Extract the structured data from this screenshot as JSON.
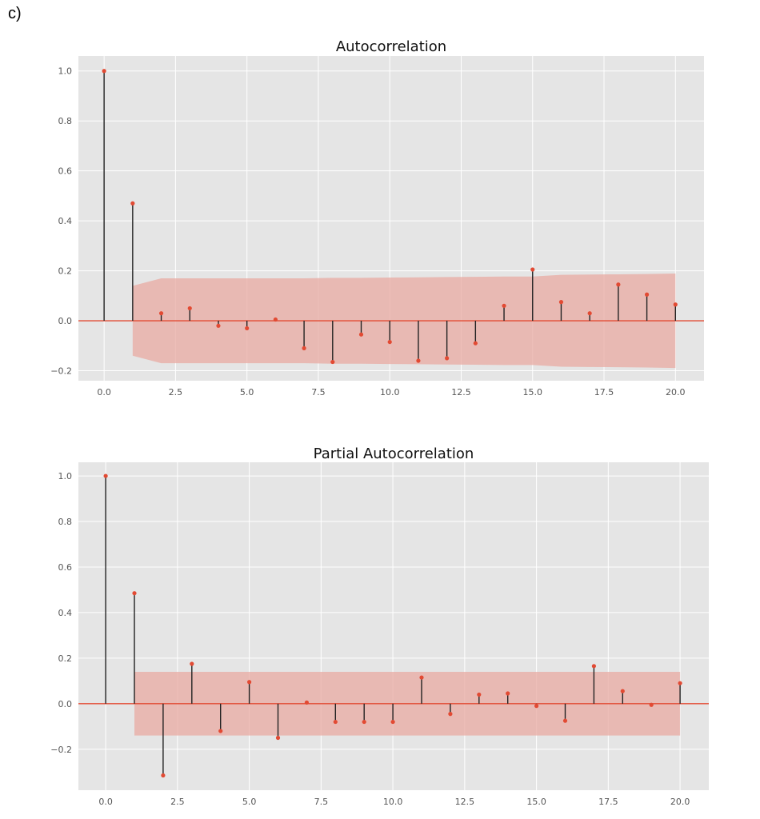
{
  "figure": {
    "panel_label": "c)"
  },
  "colors": {
    "background": "#e5e5e5",
    "grid": "#ffffff",
    "stem": "#222222",
    "marker": "#e24a33",
    "baseline": "#e24a33",
    "confidence_band": "#e8a9a1"
  },
  "chart_data": [
    {
      "type": "stem",
      "title": "Autocorrelation",
      "xlabel": "",
      "ylabel": "",
      "xlim": [
        -0.9,
        21.0
      ],
      "ylim": [
        -0.24,
        1.06
      ],
      "xticks": [
        0.0,
        2.5,
        5.0,
        7.5,
        10.0,
        12.5,
        15.0,
        17.5,
        20.0
      ],
      "xtick_labels": [
        "0.0",
        "2.5",
        "5.0",
        "7.5",
        "10.0",
        "12.5",
        "15.0",
        "17.5",
        "20.0"
      ],
      "yticks": [
        -0.2,
        0.0,
        0.2,
        0.4,
        0.6,
        0.8,
        1.0
      ],
      "ytick_labels": [
        "−0.2",
        "0.0",
        "0.2",
        "0.4",
        "0.6",
        "0.8",
        "1.0"
      ],
      "grid": true,
      "lags": [
        0,
        1,
        2,
        3,
        4,
        5,
        6,
        7,
        8,
        9,
        10,
        11,
        12,
        13,
        14,
        15,
        16,
        17,
        18,
        19,
        20
      ],
      "values": [
        1.0,
        0.47,
        0.03,
        0.05,
        -0.02,
        -0.03,
        0.005,
        -0.11,
        -0.165,
        -0.055,
        -0.085,
        -0.16,
        -0.15,
        -0.09,
        0.06,
        0.205,
        0.075,
        0.03,
        0.145,
        0.105,
        0.065
      ],
      "confidence_band": {
        "lags": [
          1,
          2,
          3,
          4,
          5,
          6,
          7,
          8,
          9,
          10,
          11,
          12,
          13,
          14,
          15,
          16,
          17,
          18,
          19,
          20
        ],
        "upper": [
          0.14,
          0.17,
          0.17,
          0.17,
          0.17,
          0.17,
          0.17,
          0.172,
          0.172,
          0.173,
          0.174,
          0.175,
          0.176,
          0.177,
          0.177,
          0.184,
          0.185,
          0.186,
          0.187,
          0.189
        ],
        "lower": [
          -0.14,
          -0.17,
          -0.17,
          -0.17,
          -0.17,
          -0.17,
          -0.17,
          -0.172,
          -0.172,
          -0.173,
          -0.174,
          -0.175,
          -0.176,
          -0.177,
          -0.177,
          -0.184,
          -0.185,
          -0.186,
          -0.187,
          -0.189
        ]
      }
    },
    {
      "type": "stem",
      "title": "Partial Autocorrelation",
      "xlabel": "",
      "ylabel": "",
      "xlim": [
        -0.95,
        21.0
      ],
      "ylim": [
        -0.38,
        1.06
      ],
      "xticks": [
        0.0,
        2.5,
        5.0,
        7.5,
        10.0,
        12.5,
        15.0,
        17.5,
        20.0
      ],
      "xtick_labels": [
        "0.0",
        "2.5",
        "5.0",
        "7.5",
        "10.0",
        "12.5",
        "15.0",
        "17.5",
        "20.0"
      ],
      "yticks": [
        -0.2,
        0.0,
        0.2,
        0.4,
        0.6,
        0.8,
        1.0
      ],
      "ytick_labels": [
        "−0.2",
        "0.0",
        "0.2",
        "0.4",
        "0.6",
        "0.8",
        "1.0"
      ],
      "grid": true,
      "lags": [
        0,
        1,
        2,
        3,
        4,
        5,
        6,
        7,
        8,
        9,
        10,
        11,
        12,
        13,
        14,
        15,
        16,
        17,
        18,
        19,
        20
      ],
      "values": [
        1.0,
        0.485,
        -0.315,
        0.175,
        -0.12,
        0.095,
        -0.15,
        0.005,
        -0.08,
        -0.08,
        -0.08,
        0.115,
        -0.045,
        0.04,
        0.045,
        -0.01,
        -0.075,
        0.165,
        0.055,
        -0.005,
        0.09
      ],
      "confidence_band": {
        "lags": [
          1,
          2,
          3,
          4,
          5,
          6,
          7,
          8,
          9,
          10,
          11,
          12,
          13,
          14,
          15,
          16,
          17,
          18,
          19,
          20
        ],
        "upper": [
          0.14,
          0.14,
          0.14,
          0.14,
          0.14,
          0.14,
          0.14,
          0.14,
          0.14,
          0.14,
          0.14,
          0.14,
          0.14,
          0.14,
          0.14,
          0.14,
          0.14,
          0.14,
          0.14,
          0.14
        ],
        "lower": [
          -0.14,
          -0.14,
          -0.14,
          -0.14,
          -0.14,
          -0.14,
          -0.14,
          -0.14,
          -0.14,
          -0.14,
          -0.14,
          -0.14,
          -0.14,
          -0.14,
          -0.14,
          -0.14,
          -0.14,
          -0.14,
          -0.14,
          -0.14
        ]
      }
    }
  ]
}
